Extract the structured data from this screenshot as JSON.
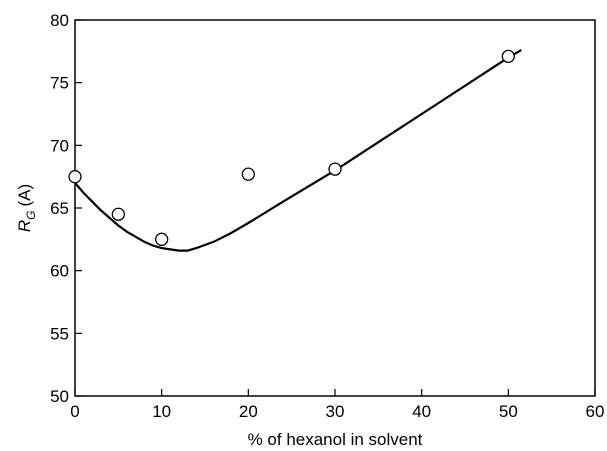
{
  "chart_data": {
    "type": "scatter",
    "title": "",
    "xlabel": "% of hexanol in solvent",
    "ylabel": {
      "symbol": "R",
      "subscript": "G",
      "unit": "(A)"
    },
    "xlim": [
      0,
      60
    ],
    "ylim": [
      50,
      80
    ],
    "xticks": [
      0,
      10,
      20,
      30,
      40,
      50,
      60
    ],
    "yticks": [
      50,
      55,
      60,
      65,
      70,
      75,
      80
    ],
    "grid": false,
    "legend": "none",
    "series": [
      {
        "kind": "points",
        "marker": "open-circle",
        "x": [
          0,
          5,
          10,
          20,
          30,
          50
        ],
        "y": [
          67.5,
          64.5,
          62.5,
          67.7,
          68.1,
          77.1
        ]
      },
      {
        "kind": "fit-curve",
        "x": [
          0,
          1,
          2,
          3,
          4,
          5,
          6,
          7,
          8,
          9,
          10,
          11,
          12,
          13,
          14,
          16,
          18,
          20,
          24,
          30,
          40,
          50,
          51.5
        ],
        "y": [
          67.0,
          66.2,
          65.5,
          64.8,
          64.2,
          63.6,
          63.1,
          62.7,
          62.3,
          62.0,
          61.8,
          61.7,
          61.6,
          61.6,
          61.8,
          62.3,
          63.0,
          63.8,
          65.5,
          68.0,
          72.5,
          77.0,
          77.6
        ]
      }
    ]
  }
}
